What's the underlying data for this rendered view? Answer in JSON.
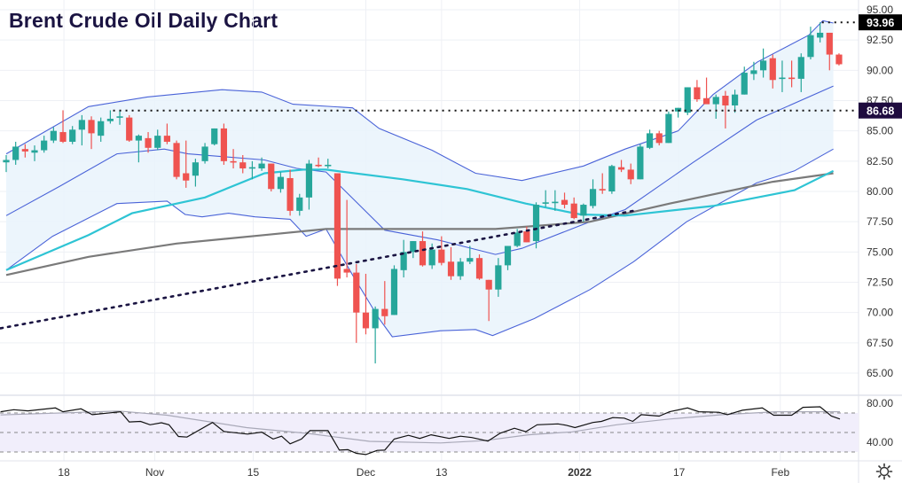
{
  "title": "Brent Crude Oil Daily Chart",
  "colors": {
    "up": "#26a69a",
    "down": "#ef5350",
    "band": "#4a63d8",
    "band_fill": "#e9f3fc",
    "ma50": "#2ec4d4",
    "ma200": "#7a7a7a",
    "rsi": "#111111",
    "rsi_ma": "#a9a9b8",
    "rsi_fill": "#f1eefb",
    "grid": "#eef0f5",
    "trendline": "#1a1442",
    "label_high_bg": "#000000",
    "label_level_bg": "#1e0b3e"
  },
  "chart_data": {
    "type": "candlestick",
    "title": "Brent Crude Oil Daily Chart",
    "ylim": [
      64,
      95.5
    ],
    "yticks": [
      "95.00",
      "92.50",
      "90.00",
      "87.50",
      "85.00",
      "82.50",
      "80.00",
      "77.50",
      "75.00",
      "72.50",
      "70.00",
      "67.50",
      "65.00"
    ],
    "xticks": [
      {
        "label": "18",
        "bar": 6.1
      },
      {
        "label": "Nov",
        "bar": 15.7
      },
      {
        "label": "15",
        "bar": 26.1
      },
      {
        "label": "Dec",
        "bar": 38
      },
      {
        "label": "13",
        "bar": 46
      },
      {
        "label": "2022",
        "bar": 60.6
      },
      {
        "label": "17",
        "bar": 71.1
      },
      {
        "label": "Feb",
        "bar": 81.8
      }
    ],
    "ohlc": [
      [
        82.4,
        83.0,
        81.6,
        82.6
      ],
      [
        82.6,
        84.1,
        82.2,
        83.7
      ],
      [
        83.5,
        83.9,
        82.8,
        83.3
      ],
      [
        83.2,
        83.8,
        82.5,
        83.4
      ],
      [
        83.4,
        84.6,
        83.2,
        84.2
      ],
      [
        84.2,
        85.3,
        84.0,
        85.0
      ],
      [
        84.9,
        86.7,
        84.0,
        84.1
      ],
      [
        84.1,
        85.4,
        83.9,
        85.1
      ],
      [
        85.1,
        86.3,
        83.8,
        85.9
      ],
      [
        85.9,
        86.2,
        83.5,
        84.8
      ],
      [
        84.6,
        86.1,
        84.1,
        85.8
      ],
      [
        85.8,
        86.7,
        85.6,
        86.0
      ],
      [
        86.1,
        86.7,
        85.5,
        86.2
      ],
      [
        86.1,
        86.3,
        84.1,
        84.2
      ],
      [
        84.2,
        84.7,
        82.4,
        84.6
      ],
      [
        84.4,
        84.9,
        83.2,
        83.6
      ],
      [
        83.6,
        85.1,
        83.4,
        84.6
      ],
      [
        84.6,
        85.6,
        83.9,
        84.1
      ],
      [
        84.0,
        84.2,
        81.0,
        81.2
      ],
      [
        81.5,
        84.2,
        80.3,
        80.9
      ],
      [
        81.3,
        82.7,
        80.4,
        82.4
      ],
      [
        82.5,
        84.0,
        82.3,
        83.7
      ],
      [
        83.9,
        85.2,
        83.8,
        85.2
      ],
      [
        85.2,
        85.6,
        82.2,
        82.5
      ],
      [
        82.5,
        83.5,
        81.9,
        82.4
      ],
      [
        82.4,
        83.0,
        81.5,
        81.9
      ],
      [
        81.9,
        82.5,
        81.0,
        82.0
      ],
      [
        81.9,
        82.8,
        81.7,
        82.3
      ],
      [
        82.3,
        82.3,
        80.0,
        80.2
      ],
      [
        80.2,
        81.6,
        79.9,
        81.2
      ],
      [
        81.1,
        81.8,
        78.0,
        78.4
      ],
      [
        78.4,
        79.8,
        78.0,
        79.5
      ],
      [
        79.5,
        82.6,
        78.5,
        82.3
      ],
      [
        82.2,
        82.8,
        82.0,
        82.1
      ],
      [
        82.1,
        82.7,
        81.9,
        82.2
      ],
      [
        81.5,
        81.5,
        72.2,
        72.8
      ],
      [
        73.6,
        79.3,
        72.9,
        73.3
      ],
      [
        73.3,
        74.0,
        67.5,
        70.0
      ],
      [
        70.0,
        73.2,
        68.2,
        68.7
      ],
      [
        68.7,
        70.5,
        65.8,
        70.3
      ],
      [
        70.3,
        72.6,
        69.0,
        69.7
      ],
      [
        69.8,
        73.9,
        69.8,
        73.6
      ],
      [
        73.5,
        76.0,
        72.9,
        75.0
      ],
      [
        75.0,
        75.9,
        74.5,
        75.9
      ],
      [
        75.9,
        76.7,
        73.8,
        73.9
      ],
      [
        73.9,
        75.7,
        73.6,
        75.2
      ],
      [
        75.2,
        76.3,
        73.9,
        74.1
      ],
      [
        74.2,
        75.4,
        72.7,
        73.0
      ],
      [
        73.0,
        74.5,
        72.7,
        74.2
      ],
      [
        74.2,
        75.5,
        74.0,
        74.5
      ],
      [
        74.5,
        74.8,
        72.7,
        72.8
      ],
      [
        72.7,
        72.7,
        69.3,
        71.9
      ],
      [
        71.9,
        74.5,
        71.3,
        73.9
      ],
      [
        73.9,
        75.5,
        73.5,
        75.5
      ],
      [
        75.5,
        76.9,
        75.4,
        76.6
      ],
      [
        76.7,
        77.1,
        75.8,
        75.8
      ],
      [
        75.9,
        79.1,
        75.3,
        78.9
      ],
      [
        79.0,
        80.1,
        78.7,
        79.1
      ],
      [
        79.1,
        80.1,
        78.4,
        79.15
      ],
      [
        79.3,
        79.9,
        78.6,
        78.9
      ],
      [
        79.0,
        79.5,
        77.7,
        77.8
      ],
      [
        78.0,
        79.0,
        77.5,
        78.9
      ],
      [
        78.8,
        81.0,
        78.6,
        80.2
      ],
      [
        80.2,
        81.5,
        79.8,
        80.1
      ],
      [
        80.0,
        82.2,
        79.8,
        82.1
      ],
      [
        82.0,
        82.6,
        81.6,
        81.8
      ],
      [
        81.8,
        82.3,
        80.6,
        81.0
      ],
      [
        81.0,
        83.9,
        81.0,
        83.7
      ],
      [
        83.6,
        85.1,
        83.5,
        84.8
      ],
      [
        84.8,
        85.0,
        83.8,
        84.0
      ],
      [
        84.0,
        86.6,
        84.0,
        86.4
      ],
      [
        86.6,
        86.9,
        86.1,
        86.9
      ],
      [
        86.5,
        88.6,
        86.3,
        88.6
      ],
      [
        88.6,
        89.2,
        87.4,
        87.6
      ],
      [
        87.7,
        89.4,
        87.4,
        87.2
      ],
      [
        87.2,
        88.0,
        86.0,
        87.8
      ],
      [
        87.9,
        88.3,
        85.2,
        87.1
      ],
      [
        87.1,
        88.4,
        86.5,
        88.0
      ],
      [
        88.0,
        90.3,
        88.0,
        89.8
      ],
      [
        89.7,
        90.7,
        89.2,
        90.0
      ],
      [
        90.0,
        91.8,
        89.4,
        90.8
      ],
      [
        91.0,
        91.3,
        88.5,
        89.2
      ],
      [
        89.3,
        90.8,
        88.2,
        89.4
      ],
      [
        89.4,
        90.8,
        88.6,
        89.3
      ],
      [
        89.3,
        91.4,
        88.2,
        91.1
      ],
      [
        91.1,
        93.6,
        90.9,
        92.9
      ],
      [
        92.7,
        93.96,
        92.3,
        93.1
      ],
      [
        93.1,
        93.1,
        90.0,
        91.3
      ],
      [
        91.3,
        91.4,
        90.4,
        90.5
      ]
    ],
    "bollinger_upper": [
      [
        0,
        83.1
      ],
      [
        8.7,
        87.0
      ],
      [
        14.9,
        87.8
      ],
      [
        22.8,
        88.4
      ],
      [
        27,
        88.2
      ],
      [
        30.3,
        87.2
      ],
      [
        36.6,
        86.9
      ],
      [
        39.4,
        85.2
      ],
      [
        45,
        83.4
      ],
      [
        49.6,
        81.5
      ],
      [
        54.5,
        80.9
      ],
      [
        61,
        82.1
      ],
      [
        65.4,
        83.5
      ],
      [
        71,
        85.0
      ],
      [
        74.7,
        88.0
      ],
      [
        79.4,
        90.7
      ],
      [
        84.8,
        92.9
      ],
      [
        86.3,
        94.1
      ],
      [
        87.4,
        93.9
      ]
    ],
    "bollinger_middle": [
      [
        0,
        78.0
      ],
      [
        5.6,
        80.4
      ],
      [
        11.7,
        83.1
      ],
      [
        16.7,
        83.5
      ],
      [
        19.2,
        83.1
      ],
      [
        27.3,
        82.6
      ],
      [
        30.7,
        81.9
      ],
      [
        33.8,
        81.6
      ],
      [
        40,
        76.8
      ],
      [
        45.6,
        76.0
      ],
      [
        51.7,
        74.8
      ],
      [
        54.5,
        75.3
      ],
      [
        61.7,
        77.5
      ],
      [
        65.4,
        78.5
      ],
      [
        72.6,
        82.4
      ],
      [
        79.3,
        85.9
      ],
      [
        87.4,
        88.7
      ]
    ],
    "bollinger_lower": [
      [
        0,
        73.5
      ],
      [
        4.9,
        76.3
      ],
      [
        11.7,
        79.0
      ],
      [
        17,
        79.2
      ],
      [
        18.9,
        78.1
      ],
      [
        20.7,
        77.9
      ],
      [
        23.5,
        78.2
      ],
      [
        26.3,
        77.9
      ],
      [
        30,
        77.7
      ],
      [
        31.7,
        76.3
      ],
      [
        33.8,
        76.9
      ],
      [
        36.6,
        73.1
      ],
      [
        39.4,
        69.5
      ],
      [
        40.8,
        68.0
      ],
      [
        45.9,
        68.5
      ],
      [
        49.6,
        68.6
      ],
      [
        51.4,
        68.1
      ],
      [
        55.8,
        69.5
      ],
      [
        61.7,
        71.9
      ],
      [
        66.3,
        74.2
      ],
      [
        71.9,
        77.5
      ],
      [
        79.3,
        80.7
      ],
      [
        83.3,
        81.7
      ],
      [
        87.4,
        83.5
      ]
    ],
    "ma50": [
      [
        0,
        73.5
      ],
      [
        8.7,
        76.4
      ],
      [
        13.3,
        78.2
      ],
      [
        21,
        79.5
      ],
      [
        27.3,
        81.5
      ],
      [
        31.4,
        81.8
      ],
      [
        33.8,
        81.8
      ],
      [
        41.9,
        81.0
      ],
      [
        48.7,
        80.2
      ],
      [
        54.9,
        79.0
      ],
      [
        60.7,
        78.1
      ],
      [
        65.4,
        78.0
      ],
      [
        74.7,
        78.8
      ],
      [
        83.3,
        80.1
      ],
      [
        87.4,
        81.7
      ]
    ],
    "ma200": [
      [
        0,
        73.1
      ],
      [
        8.7,
        74.6
      ],
      [
        18,
        75.7
      ],
      [
        27.3,
        76.4
      ],
      [
        33.8,
        76.9
      ],
      [
        39.4,
        76.9
      ],
      [
        51.7,
        76.9
      ],
      [
        61.7,
        77.5
      ],
      [
        70.1,
        79.0
      ],
      [
        81,
        80.8
      ],
      [
        87.4,
        81.5
      ]
    ],
    "trendline": [
      [
        -0.6,
        68.7
      ],
      [
        66.3,
        78.4
      ]
    ],
    "levels": [
      {
        "value": 86.68,
        "label": "86.68",
        "from_bar": 11.3
      },
      {
        "value": 93.96,
        "label": "93.96",
        "from_bar": 86.2
      }
    ],
    "rsi": {
      "ylim": [
        24,
        90
      ],
      "yticks": [
        "80.00",
        "40.00"
      ],
      "bands": [
        70,
        50,
        30
      ],
      "line": [
        [
          -0.6,
          71.3
        ],
        [
          0.8,
          73.4
        ],
        [
          2.3,
          72.2
        ],
        [
          5.2,
          75.2
        ],
        [
          6,
          71.3
        ],
        [
          7.9,
          74.3
        ],
        [
          9.1,
          68.3
        ],
        [
          12.1,
          71.3
        ],
        [
          13,
          60.8
        ],
        [
          14.2,
          61.4
        ],
        [
          15.2,
          57.9
        ],
        [
          16.4,
          60
        ],
        [
          17.2,
          57.9
        ],
        [
          18.2,
          45.9
        ],
        [
          19.1,
          45.3
        ],
        [
          21.8,
          60.3
        ],
        [
          23,
          51
        ],
        [
          25.5,
          48.4
        ],
        [
          27,
          50.4
        ],
        [
          28.2,
          43.3
        ],
        [
          29.1,
          46.2
        ],
        [
          30,
          38.4
        ],
        [
          31.2,
          43.3
        ],
        [
          32.1,
          51.9
        ],
        [
          34,
          51.9
        ],
        [
          35.2,
          31.9
        ],
        [
          36.1,
          32.4
        ],
        [
          37,
          28.6
        ],
        [
          38,
          27.4
        ],
        [
          39.2,
          31.6
        ],
        [
          40,
          31.9
        ],
        [
          41,
          43.3
        ],
        [
          42.5,
          47.1
        ],
        [
          43.7,
          43.9
        ],
        [
          44.9,
          47.6
        ],
        [
          46.8,
          43.9
        ],
        [
          48,
          46.2
        ],
        [
          49.2,
          44.8
        ],
        [
          50.9,
          41.2
        ],
        [
          52.2,
          49.3
        ],
        [
          53.7,
          54.4
        ],
        [
          54.9,
          50.8
        ],
        [
          56.1,
          57.9
        ],
        [
          58.3,
          58.8
        ],
        [
          59.2,
          57.4
        ],
        [
          60.1,
          55
        ],
        [
          62,
          60.3
        ],
        [
          62.9,
          61.4
        ],
        [
          64.1,
          65.3
        ],
        [
          65.3,
          64.7
        ],
        [
          66.2,
          61.4
        ],
        [
          67.1,
          68.3
        ],
        [
          69,
          66.8
        ],
        [
          70.1,
          71.3
        ],
        [
          72,
          75.2
        ],
        [
          73.2,
          71.3
        ],
        [
          75.3,
          70.7
        ],
        [
          76.2,
          68.3
        ],
        [
          77.8,
          72.8
        ],
        [
          79.9,
          75.2
        ],
        [
          81.1,
          67.7
        ],
        [
          83,
          67.7
        ],
        [
          84.2,
          75.8
        ],
        [
          86,
          76.4
        ],
        [
          87.2,
          66.8
        ],
        [
          88.1,
          63.8
        ]
      ],
      "ma": [
        [
          -0.6,
          68
        ],
        [
          11.9,
          72
        ],
        [
          17,
          67.7
        ],
        [
          25.4,
          55
        ],
        [
          31.9,
          49
        ],
        [
          38.4,
          40.9
        ],
        [
          45.9,
          39.3
        ],
        [
          50.5,
          41.6
        ],
        [
          55.2,
          47.6
        ],
        [
          59.8,
          50.6
        ],
        [
          64.5,
          57.9
        ],
        [
          70.1,
          63.8
        ],
        [
          75.7,
          68.3
        ],
        [
          81.3,
          71.3
        ],
        [
          88.1,
          71.3
        ]
      ]
    }
  },
  "settings_icon": "gear-icon"
}
